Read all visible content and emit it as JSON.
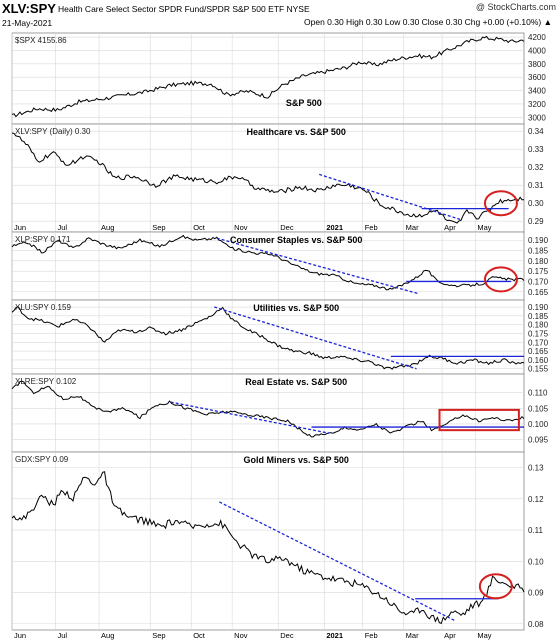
{
  "header": {
    "symbol": "XLV:SPY",
    "name": "Health Care Select Sector SPDR Fund/SPDR S&P 500 ETF  NYSE",
    "date": "21-May-2021",
    "ohlc": "Open 0.30  High 0.30  Low 0.30  Close 0.30  Chg +0.00 (+0.10%) ▲",
    "brand": "@ StockCharts.com"
  },
  "colors": {
    "price": "#000000",
    "trend": "#1a24d8",
    "level": "#1a24d8",
    "highlight": "#d62020",
    "grid": "#d9d9d9"
  },
  "x_axis": {
    "ticks_top": [
      "Jun",
      "Jul",
      "Aug",
      "Sep",
      "Oct",
      "Nov",
      "Dec",
      "2021",
      "Feb",
      "Mar",
      "Apr",
      "May"
    ],
    "ticks_bottom": [
      "Jun",
      "Jul",
      "Aug",
      "Sep",
      "Oct",
      "Nov",
      "Dec",
      "2021",
      "Feb",
      "Mar",
      "Apr",
      "May"
    ]
  },
  "chart_data": [
    {
      "type": "line",
      "legend": "$SPX 4155.86",
      "title": "S&P 500",
      "ylim": [
        2900,
        4260
      ],
      "yticks": [
        "4200",
        "4000",
        "3800",
        "3600",
        "3400",
        "3200",
        "3000"
      ],
      "anchors": [
        [
          0,
          3020
        ],
        [
          0.05,
          3130
        ],
        [
          0.09,
          3110
        ],
        [
          0.13,
          3230
        ],
        [
          0.18,
          3280
        ],
        [
          0.22,
          3330
        ],
        [
          0.26,
          3380
        ],
        [
          0.31,
          3480
        ],
        [
          0.35,
          3510
        ],
        [
          0.39,
          3500
        ],
        [
          0.42,
          3340
        ],
        [
          0.46,
          3390
        ],
        [
          0.5,
          3310
        ],
        [
          0.53,
          3490
        ],
        [
          0.57,
          3620
        ],
        [
          0.61,
          3680
        ],
        [
          0.65,
          3740
        ],
        [
          0.68,
          3830
        ],
        [
          0.71,
          3780
        ],
        [
          0.75,
          3870
        ],
        [
          0.79,
          3920
        ],
        [
          0.82,
          3900
        ],
        [
          0.86,
          4030
        ],
        [
          0.89,
          4130
        ],
        [
          0.92,
          4190
        ],
        [
          0.95,
          4170
        ],
        [
          0.98,
          4130
        ],
        [
          1,
          4160
        ]
      ],
      "annotations": {
        "trendlines": [],
        "levels": [],
        "circles": [],
        "boxes": []
      }
    },
    {
      "type": "line",
      "legend": "XLV:SPY (Daily) 0.30",
      "title": "Healthcare vs. S&P 500",
      "ylim": [
        0.284,
        0.344
      ],
      "yticks": [
        "0.34",
        "0.33",
        "0.32",
        "0.31",
        "0.30",
        "0.29"
      ],
      "anchors": [
        [
          0,
          0.34
        ],
        [
          0.03,
          0.332
        ],
        [
          0.05,
          0.323
        ],
        [
          0.08,
          0.328
        ],
        [
          0.11,
          0.321
        ],
        [
          0.14,
          0.326
        ],
        [
          0.17,
          0.323
        ],
        [
          0.2,
          0.314
        ],
        [
          0.24,
          0.315
        ],
        [
          0.28,
          0.31
        ],
        [
          0.32,
          0.315
        ],
        [
          0.36,
          0.313
        ],
        [
          0.4,
          0.312
        ],
        [
          0.44,
          0.315
        ],
        [
          0.48,
          0.308
        ],
        [
          0.52,
          0.306
        ],
        [
          0.56,
          0.309
        ],
        [
          0.6,
          0.307
        ],
        [
          0.63,
          0.31
        ],
        [
          0.66,
          0.31
        ],
        [
          0.69,
          0.307
        ],
        [
          0.72,
          0.299
        ],
        [
          0.75,
          0.296
        ],
        [
          0.78,
          0.293
        ],
        [
          0.81,
          0.294
        ],
        [
          0.83,
          0.296
        ],
        [
          0.85,
          0.29
        ],
        [
          0.87,
          0.288
        ],
        [
          0.89,
          0.296
        ],
        [
          0.91,
          0.292
        ],
        [
          0.93,
          0.296
        ],
        [
          0.95,
          0.301
        ],
        [
          0.97,
          0.302
        ],
        [
          1,
          0.303
        ]
      ],
      "annotations": {
        "trendlines": [
          [
            [
              0.6,
              0.316
            ],
            [
              0.875,
              0.291
            ]
          ]
        ],
        "levels": [
          [
            [
              0.8,
              0.297
            ],
            [
              0.97,
              0.297
            ]
          ]
        ],
        "circles": [
          [
            0.955,
            0.3
          ]
        ],
        "boxes": []
      }
    },
    {
      "type": "line",
      "legend": "XLP:SPY 0.171",
      "title": "Consumer Staples vs. S&P 500",
      "ylim": [
        0.161,
        0.194
      ],
      "yticks": [
        "0.190",
        "0.185",
        "0.180",
        "0.175",
        "0.170",
        "0.165"
      ],
      "anchors": [
        [
          0,
          0.187
        ],
        [
          0.03,
          0.189
        ],
        [
          0.06,
          0.184
        ],
        [
          0.09,
          0.19
        ],
        [
          0.12,
          0.186
        ],
        [
          0.15,
          0.191
        ],
        [
          0.18,
          0.188
        ],
        [
          0.21,
          0.186
        ],
        [
          0.25,
          0.19
        ],
        [
          0.29,
          0.187
        ],
        [
          0.33,
          0.192
        ],
        [
          0.36,
          0.19
        ],
        [
          0.4,
          0.191
        ],
        [
          0.43,
          0.186
        ],
        [
          0.47,
          0.184
        ],
        [
          0.51,
          0.183
        ],
        [
          0.55,
          0.178
        ],
        [
          0.59,
          0.174
        ],
        [
          0.63,
          0.173
        ],
        [
          0.67,
          0.169
        ],
        [
          0.71,
          0.168
        ],
        [
          0.74,
          0.166
        ],
        [
          0.76,
          0.168
        ],
        [
          0.79,
          0.172
        ],
        [
          0.81,
          0.176
        ],
        [
          0.83,
          0.17
        ],
        [
          0.86,
          0.168
        ],
        [
          0.89,
          0.168
        ],
        [
          0.92,
          0.169
        ],
        [
          0.94,
          0.172
        ],
        [
          0.97,
          0.171
        ],
        [
          1,
          0.171
        ]
      ],
      "annotations": {
        "trendlines": [
          [
            [
              0.4,
              0.191
            ],
            [
              0.795,
              0.164
            ]
          ]
        ],
        "levels": [
          [
            [
              0.77,
              0.17
            ],
            [
              0.975,
              0.17
            ]
          ]
        ],
        "circles": [
          [
            0.955,
            0.171
          ]
        ],
        "boxes": []
      }
    },
    {
      "type": "line",
      "legend": "XLU:SPY 0.159",
      "title": "Utilities vs. S&P 500",
      "ylim": [
        0.152,
        0.194
      ],
      "yticks": [
        "0.190",
        "0.185",
        "0.180",
        "0.175",
        "0.170",
        "0.165",
        "0.160",
        "0.155"
      ],
      "anchors": [
        [
          0,
          0.187
        ],
        [
          0.01,
          0.19
        ],
        [
          0.03,
          0.184
        ],
        [
          0.06,
          0.182
        ],
        [
          0.09,
          0.179
        ],
        [
          0.12,
          0.183
        ],
        [
          0.15,
          0.179
        ],
        [
          0.18,
          0.17
        ],
        [
          0.21,
          0.177
        ],
        [
          0.24,
          0.176
        ],
        [
          0.27,
          0.178
        ],
        [
          0.3,
          0.175
        ],
        [
          0.33,
          0.177
        ],
        [
          0.36,
          0.181
        ],
        [
          0.39,
          0.185
        ],
        [
          0.41,
          0.19
        ],
        [
          0.43,
          0.183
        ],
        [
          0.46,
          0.177
        ],
        [
          0.49,
          0.173
        ],
        [
          0.52,
          0.168
        ],
        [
          0.55,
          0.165
        ],
        [
          0.58,
          0.164
        ],
        [
          0.61,
          0.161
        ],
        [
          0.64,
          0.162
        ],
        [
          0.67,
          0.16
        ],
        [
          0.7,
          0.159
        ],
        [
          0.73,
          0.155
        ],
        [
          0.76,
          0.156
        ],
        [
          0.79,
          0.158
        ],
        [
          0.81,
          0.162
        ],
        [
          0.84,
          0.161
        ],
        [
          0.87,
          0.158
        ],
        [
          0.9,
          0.16
        ],
        [
          0.93,
          0.158
        ],
        [
          0.96,
          0.16
        ],
        [
          0.98,
          0.158
        ],
        [
          1,
          0.159
        ]
      ],
      "annotations": {
        "trendlines": [
          [
            [
              0.395,
              0.19
            ],
            [
              0.79,
              0.155
            ]
          ]
        ],
        "levels": [
          [
            [
              0.74,
              0.162
            ],
            [
              1.0,
              0.162
            ]
          ]
        ],
        "circles": [],
        "boxes": []
      }
    },
    {
      "type": "line",
      "legend": "XLRE:SPY 0.102",
      "title": "Real Estate vs. S&P 500",
      "ylim": [
        0.091,
        0.116
      ],
      "yticks": [
        "0.110",
        "0.105",
        "0.100",
        "0.095"
      ],
      "anchors": [
        [
          0,
          0.111
        ],
        [
          0.02,
          0.114
        ],
        [
          0.04,
          0.11
        ],
        [
          0.07,
          0.112
        ],
        [
          0.1,
          0.108
        ],
        [
          0.13,
          0.109
        ],
        [
          0.16,
          0.105
        ],
        [
          0.19,
          0.104
        ],
        [
          0.22,
          0.105
        ],
        [
          0.25,
          0.102
        ],
        [
          0.28,
          0.106
        ],
        [
          0.31,
          0.107
        ],
        [
          0.34,
          0.105
        ],
        [
          0.38,
          0.103
        ],
        [
          0.42,
          0.104
        ],
        [
          0.46,
          0.103
        ],
        [
          0.5,
          0.102
        ],
        [
          0.54,
          0.101
        ],
        [
          0.57,
          0.097
        ],
        [
          0.59,
          0.096
        ],
        [
          0.61,
          0.097
        ],
        [
          0.63,
          0.097
        ],
        [
          0.65,
          0.099
        ],
        [
          0.68,
          0.098
        ],
        [
          0.71,
          0.1
        ],
        [
          0.74,
          0.097
        ],
        [
          0.77,
          0.099
        ],
        [
          0.8,
          0.101
        ],
        [
          0.82,
          0.098
        ],
        [
          0.85,
          0.1
        ],
        [
          0.88,
          0.103
        ],
        [
          0.91,
          0.101
        ],
        [
          0.94,
          0.102
        ],
        [
          0.97,
          0.101
        ],
        [
          1,
          0.102
        ]
      ],
      "annotations": {
        "trendlines": [
          [
            [
              0.31,
              0.107
            ],
            [
              0.62,
              0.097
            ]
          ]
        ],
        "levels": [
          [
            [
              0.585,
              0.099
            ],
            [
              1.0,
              0.099
            ]
          ]
        ],
        "circles": [],
        "boxes": [
          [
            [
              0.835,
              0.1045
            ],
            [
              0.99,
              0.098
            ]
          ]
        ]
      }
    },
    {
      "type": "line",
      "legend": "GDX:SPY 0.09",
      "title": "Gold Miners vs. S&P 500",
      "ylim": [
        0.078,
        0.135
      ],
      "yticks": [
        "0.13",
        "0.12",
        "0.11",
        "0.10",
        "0.09",
        "0.08"
      ],
      "anchors": [
        [
          0,
          0.115
        ],
        [
          0.02,
          0.113
        ],
        [
          0.04,
          0.117
        ],
        [
          0.06,
          0.121
        ],
        [
          0.08,
          0.118
        ],
        [
          0.1,
          0.123
        ],
        [
          0.12,
          0.12
        ],
        [
          0.14,
          0.127
        ],
        [
          0.16,
          0.125
        ],
        [
          0.18,
          0.128
        ],
        [
          0.2,
          0.117
        ],
        [
          0.23,
          0.114
        ],
        [
          0.26,
          0.113
        ],
        [
          0.29,
          0.111
        ],
        [
          0.32,
          0.113
        ],
        [
          0.35,
          0.111
        ],
        [
          0.38,
          0.112
        ],
        [
          0.41,
          0.112
        ],
        [
          0.44,
          0.106
        ],
        [
          0.47,
          0.102
        ],
        [
          0.5,
          0.1
        ],
        [
          0.53,
          0.101
        ],
        [
          0.57,
          0.097
        ],
        [
          0.61,
          0.095
        ],
        [
          0.64,
          0.094
        ],
        [
          0.67,
          0.093
        ],
        [
          0.7,
          0.091
        ],
        [
          0.73,
          0.088
        ],
        [
          0.76,
          0.084
        ],
        [
          0.78,
          0.083
        ],
        [
          0.8,
          0.085
        ],
        [
          0.82,
          0.082
        ],
        [
          0.84,
          0.081
        ],
        [
          0.86,
          0.084
        ],
        [
          0.88,
          0.083
        ],
        [
          0.9,
          0.086
        ],
        [
          0.92,
          0.087
        ],
        [
          0.94,
          0.095
        ],
        [
          0.96,
          0.093
        ],
        [
          1,
          0.091
        ]
      ],
      "annotations": {
        "trendlines": [
          [
            [
              0.405,
              0.119
            ],
            [
              0.865,
              0.081
            ]
          ]
        ],
        "levels": [
          [
            [
              0.7875,
              0.088
            ],
            [
              0.95,
              0.088
            ]
          ]
        ],
        "circles": [
          [
            0.945,
            0.092
          ]
        ],
        "boxes": []
      }
    }
  ]
}
